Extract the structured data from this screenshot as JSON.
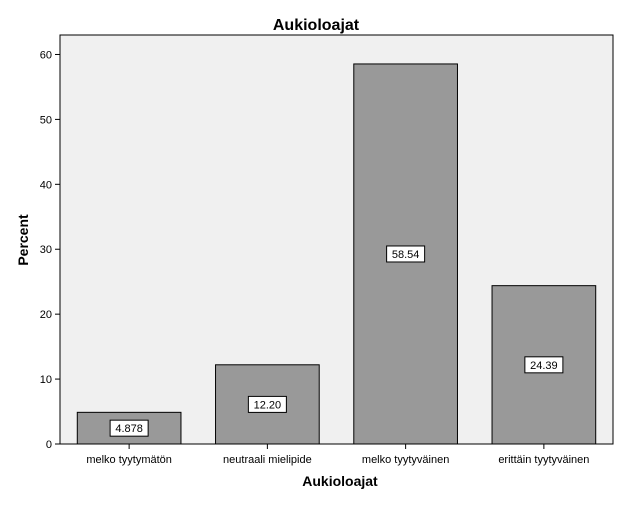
{
  "chart_data": {
    "type": "bar",
    "title": "Aukioloajat",
    "xlabel": "Aukioloajat",
    "ylabel": "Percent",
    "categories": [
      "melko tyytymätön",
      "neutraali mielipide",
      "melko tyytyväinen",
      "erittäin tyytyväinen"
    ],
    "values": [
      4.878,
      12.2,
      58.54,
      24.39
    ],
    "data_labels": [
      "4.878",
      "12.20",
      "58.54",
      "24.39"
    ],
    "ylim": [
      0,
      63
    ],
    "yticks": [
      0,
      10,
      20,
      30,
      40,
      50,
      60
    ],
    "grid": false,
    "legend": "none",
    "colors": {
      "plot_background": "#f0f0f0",
      "bar_fill": "#999999",
      "bar_stroke": "#000000",
      "label_box": "#ffffff"
    }
  }
}
